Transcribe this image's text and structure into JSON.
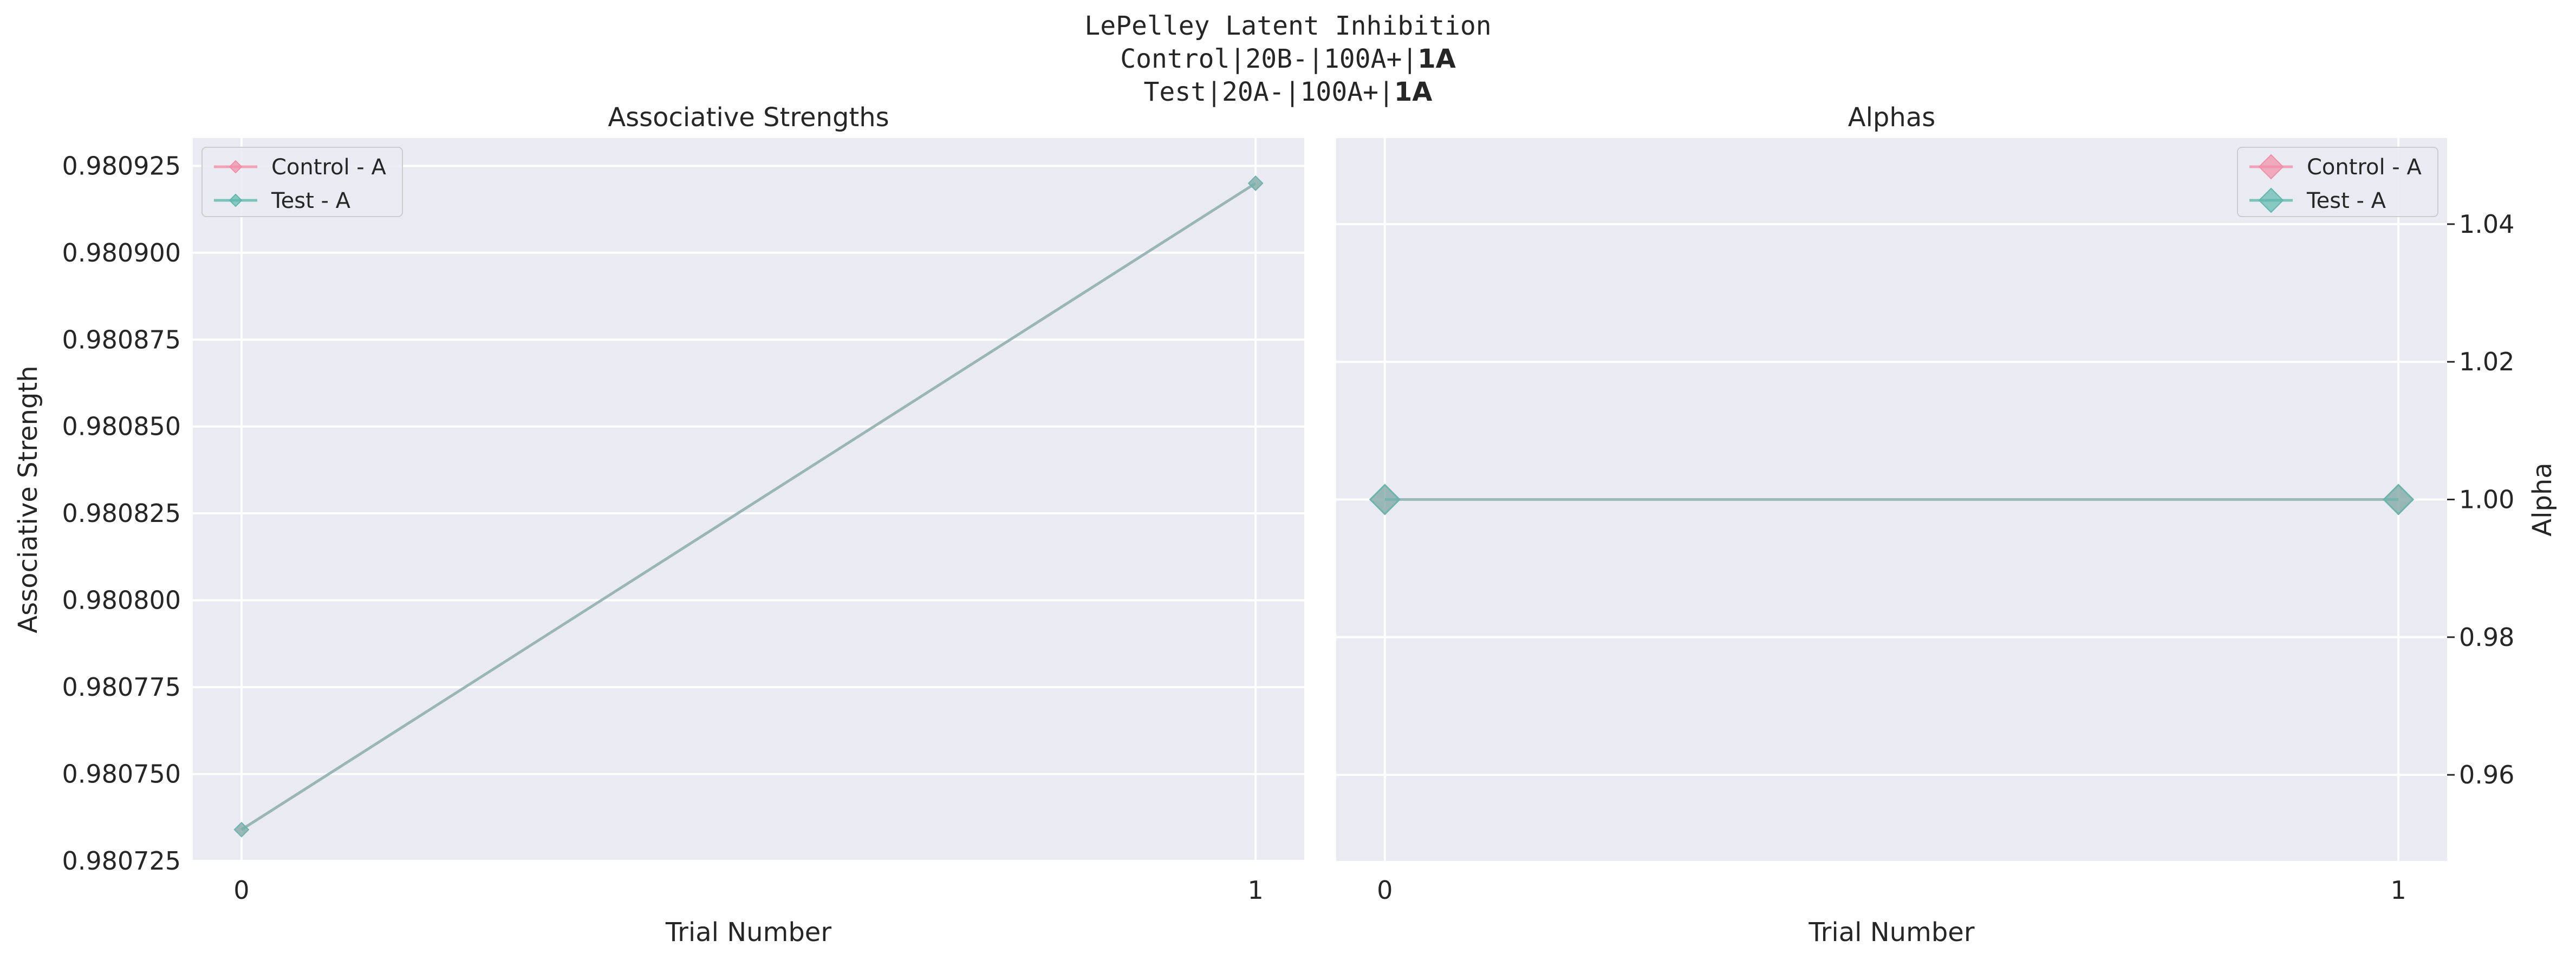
{
  "figure": {
    "title_line1": "LePelley Latent Inhibition",
    "title_line2_prefix": "Control|20B-|100A+|",
    "title_line2_bold": "1A",
    "title_line3_prefix": "Test|20A-|100A+|",
    "title_line3_bold": "1A"
  },
  "colors": {
    "background": "#eaeaf2",
    "grid": "#ffffff",
    "control": "#f28fa8",
    "test": "#5fb8ad",
    "overlap_line": "#93a9b0",
    "overlap_marker": "#7ea39f",
    "text": "#262626"
  },
  "chart_data": [
    {
      "type": "line",
      "title": "Associative Strengths",
      "xlabel": "Trial Number",
      "ylabel": "Associative Strength",
      "x": [
        0,
        1
      ],
      "xticks": [
        "0",
        "1"
      ],
      "xlim": [
        -0.048,
        1.048
      ],
      "ylim": [
        0.980725,
        0.980933
      ],
      "yticks": [
        "0.980725",
        "0.980750",
        "0.980775",
        "0.980800",
        "0.980825",
        "0.980850",
        "0.980875",
        "0.980900",
        "0.980925"
      ],
      "ytick_values": [
        0.980725,
        0.98075,
        0.980775,
        0.9808,
        0.980825,
        0.98085,
        0.980875,
        0.9809,
        0.980925
      ],
      "yaxis_side": "left",
      "grid": true,
      "legend_position": "upper-left",
      "marker": "small-diamond",
      "series": [
        {
          "name": "Control - A",
          "values": [
            0.980734,
            0.98092
          ]
        },
        {
          "name": "Test - A",
          "values": [
            0.980734,
            0.98092
          ]
        }
      ]
    },
    {
      "type": "line",
      "title": "Alphas",
      "xlabel": "Trial Number",
      "ylabel": "Alpha",
      "x": [
        0,
        1
      ],
      "xticks": [
        "0",
        "1"
      ],
      "xlim": [
        -0.048,
        1.048
      ],
      "ylim": [
        0.9475,
        1.0525
      ],
      "yticks": [
        "0.96",
        "0.98",
        "1.00",
        "1.02",
        "1.04"
      ],
      "ytick_values": [
        0.96,
        0.98,
        1.0,
        1.02,
        1.04
      ],
      "yaxis_side": "right",
      "grid": true,
      "legend_position": "upper-right",
      "marker": "large-diamond",
      "series": [
        {
          "name": "Control - A",
          "values": [
            1.0,
            1.0
          ]
        },
        {
          "name": "Test - A",
          "values": [
            1.0,
            1.0
          ]
        }
      ]
    }
  ]
}
